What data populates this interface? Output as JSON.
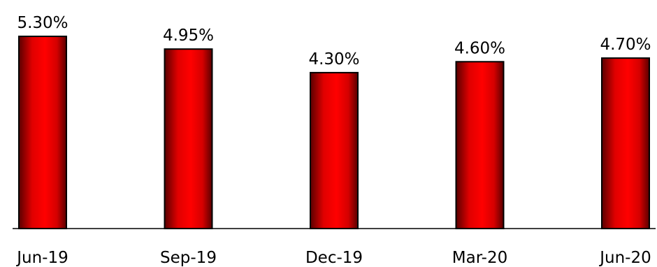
{
  "chart_data": {
    "type": "bar",
    "categories": [
      "Jun-19",
      "Sep-19",
      "Dec-19",
      "Mar-20",
      "Jun-20"
    ],
    "values": [
      5.3,
      4.95,
      4.3,
      4.6,
      4.7
    ],
    "data_labels": [
      "5.30%",
      "4.95%",
      "4.30%",
      "4.60%",
      "4.70%"
    ],
    "title": "",
    "xlabel": "",
    "ylabel": "",
    "ylim": [
      0,
      5.3
    ],
    "grid": false,
    "legend": "none",
    "colors": {
      "bar_center": "#ff0000",
      "bar_mid": "#e00000",
      "bar_edge": "#5a0000",
      "outline": "#000000"
    }
  }
}
